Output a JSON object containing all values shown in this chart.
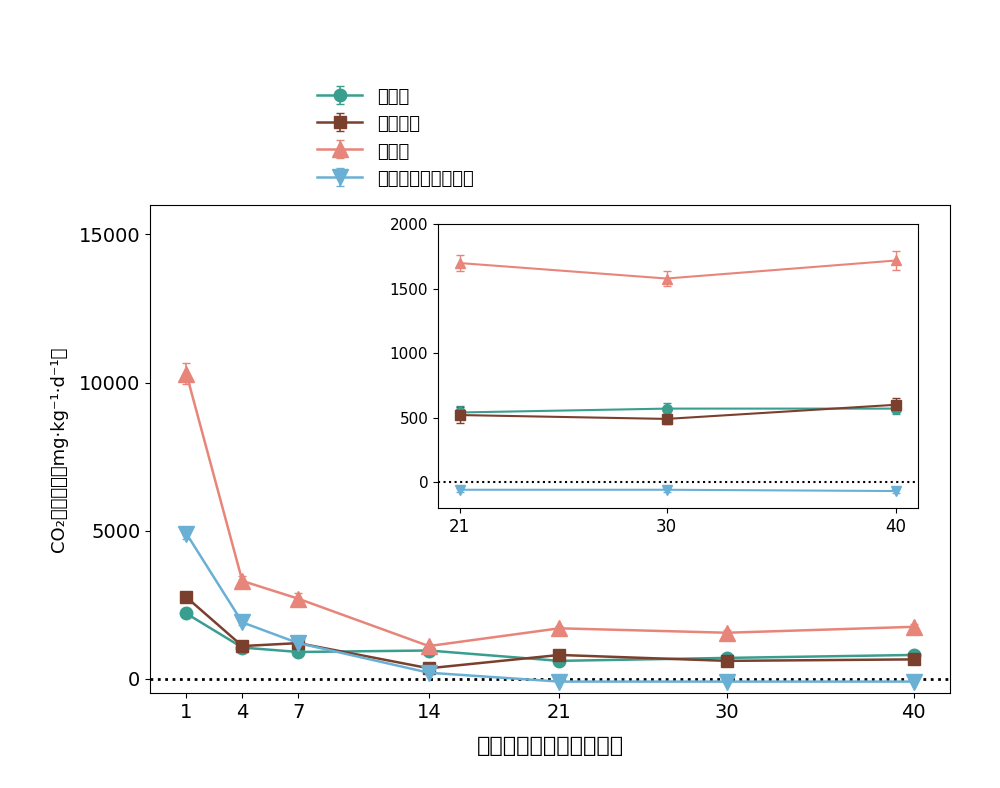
{
  "x": [
    1,
    4,
    7,
    14,
    21,
    30,
    40
  ],
  "series": {
    "未添加": {
      "y": [
        2200,
        1050,
        900,
        950,
        600,
        700,
        800
      ],
      "yerr": [
        100,
        80,
        60,
        60,
        50,
        50,
        60
      ],
      "color": "#3a9e8f",
      "marker": "o"
    },
    "生物质炭": {
      "y": [
        2750,
        1100,
        1200,
        350,
        800,
        600,
        650
      ],
      "yerr": [
        120,
        80,
        80,
        40,
        60,
        50,
        50
      ],
      "color": "#7b3f2e",
      "marker": "s"
    },
    "混合菌": {
      "y": [
        10300,
        3300,
        2700,
        1100,
        1700,
        1550,
        1750
      ],
      "yerr": [
        350,
        150,
        200,
        80,
        80,
        80,
        100
      ],
      "color": "#e8857a",
      "marker": "^"
    },
    "微生物改性生物质炭": {
      "y": [
        4900,
        1900,
        1200,
        200,
        -100,
        -100,
        -100
      ],
      "yerr": [
        200,
        100,
        80,
        50,
        20,
        20,
        20
      ],
      "color": "#6ab0d4",
      "marker": "v"
    }
  },
  "inset": {
    "x": [
      21,
      30,
      40
    ],
    "series": {
      "未添加": {
        "y": [
          540,
          570,
          570
        ],
        "yerr": [
          50,
          40,
          40
        ]
      },
      "生物质炭": {
        "y": [
          520,
          490,
          600
        ],
        "yerr": [
          60,
          40,
          50
        ]
      },
      "混合菌": {
        "y": [
          1700,
          1580,
          1720
        ],
        "yerr": [
          60,
          60,
          70
        ]
      },
      "微生物改性生物质炭": {
        "y": [
          -60,
          -60,
          -70
        ],
        "yerr": [
          15,
          15,
          15
        ]
      }
    },
    "ylim": [
      -200,
      2000
    ],
    "yticks": [
      0,
      500,
      1000,
      1500,
      2000
    ]
  },
  "ylabel": "CO₂排放速率（mg·kg⁻¹·d⁻¹）",
  "xlabel": "进行修复后的天数（天）",
  "ylim": [
    -500,
    16000
  ],
  "yticks": [
    0,
    5000,
    10000,
    15000
  ],
  "xticks": [
    1,
    4,
    7,
    14,
    21,
    30,
    40
  ],
  "legend_order": [
    "未添加",
    "生物质炭",
    "混合菌",
    "微生物改性生物质炭"
  ],
  "legend_labels": [
    "未添加",
    "生物质炭",
    "混合菌",
    "微生物改性生物质炭"
  ]
}
